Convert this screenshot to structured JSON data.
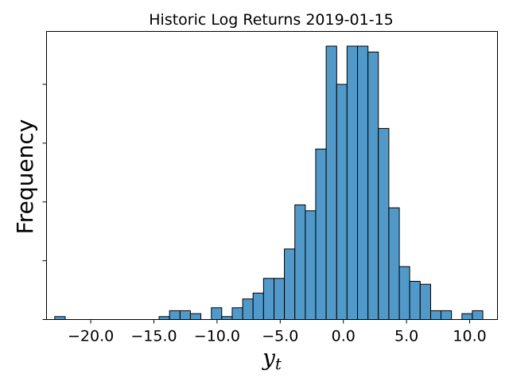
{
  "chart_data": {
    "type": "bar",
    "title": "Historic Log Returns 2019-01-15",
    "xlabel": "y",
    "xlabel_subscript": "t",
    "ylabel": "Frequency",
    "xlim": [
      -23.5,
      12.2
    ],
    "ylim": [
      0,
      49
    ],
    "xticks": [
      -20.0,
      -15.0,
      -10.0,
      -5.0,
      0.0,
      5.0,
      10.0
    ],
    "xtick_labels": [
      "−20.0",
      "−15.0",
      "−10.0",
      "−5.0",
      "0.0",
      "5.0",
      "10.0"
    ],
    "yticks": [
      0,
      10,
      20,
      30,
      40
    ],
    "ytick_labels_visible": false,
    "grid": false,
    "bar_color": "#5199c9",
    "edge_color": "#000000",
    "bins": [
      {
        "x0": -22.85,
        "x1": -22.02,
        "count": 0.5
      },
      {
        "x0": -14.59,
        "x1": -13.76,
        "count": 0.5
      },
      {
        "x0": -13.76,
        "x1": -12.93,
        "count": 1.5
      },
      {
        "x0": -12.93,
        "x1": -12.11,
        "count": 1.5
      },
      {
        "x0": -12.11,
        "x1": -11.28,
        "count": 1
      },
      {
        "x0": -10.45,
        "x1": -9.63,
        "count": 2
      },
      {
        "x0": -9.63,
        "x1": -8.8,
        "count": 0.5
      },
      {
        "x0": -8.8,
        "x1": -7.97,
        "count": 2
      },
      {
        "x0": -7.97,
        "x1": -7.15,
        "count": 3.5
      },
      {
        "x0": -7.15,
        "x1": -6.32,
        "count": 4.5
      },
      {
        "x0": -6.32,
        "x1": -5.49,
        "count": 7
      },
      {
        "x0": -5.49,
        "x1": -4.67,
        "count": 7
      },
      {
        "x0": -4.67,
        "x1": -3.84,
        "count": 12
      },
      {
        "x0": -3.84,
        "x1": -3.01,
        "count": 19.5
      },
      {
        "x0": -3.01,
        "x1": -2.19,
        "count": 18.5
      },
      {
        "x0": -2.19,
        "x1": -1.36,
        "count": 29
      },
      {
        "x0": -1.36,
        "x1": -0.53,
        "count": 46.5
      },
      {
        "x0": -0.53,
        "x1": 0.29,
        "count": 40
      },
      {
        "x0": 0.29,
        "x1": 1.12,
        "count": 46.5
      },
      {
        "x0": 1.12,
        "x1": 1.95,
        "count": 46.5
      },
      {
        "x0": 1.95,
        "x1": 2.77,
        "count": 45.5
      },
      {
        "x0": 2.77,
        "x1": 3.6,
        "count": 32.5
      },
      {
        "x0": 3.6,
        "x1": 4.43,
        "count": 19
      },
      {
        "x0": 4.43,
        "x1": 5.25,
        "count": 9
      },
      {
        "x0": 5.25,
        "x1": 6.08,
        "count": 6.5
      },
      {
        "x0": 6.08,
        "x1": 6.91,
        "count": 6
      },
      {
        "x0": 6.91,
        "x1": 7.73,
        "count": 1.5
      },
      {
        "x0": 7.73,
        "x1": 8.56,
        "count": 1.5
      },
      {
        "x0": 9.39,
        "x1": 10.21,
        "count": 1
      },
      {
        "x0": 10.21,
        "x1": 11.04,
        "count": 1.5
      }
    ]
  }
}
